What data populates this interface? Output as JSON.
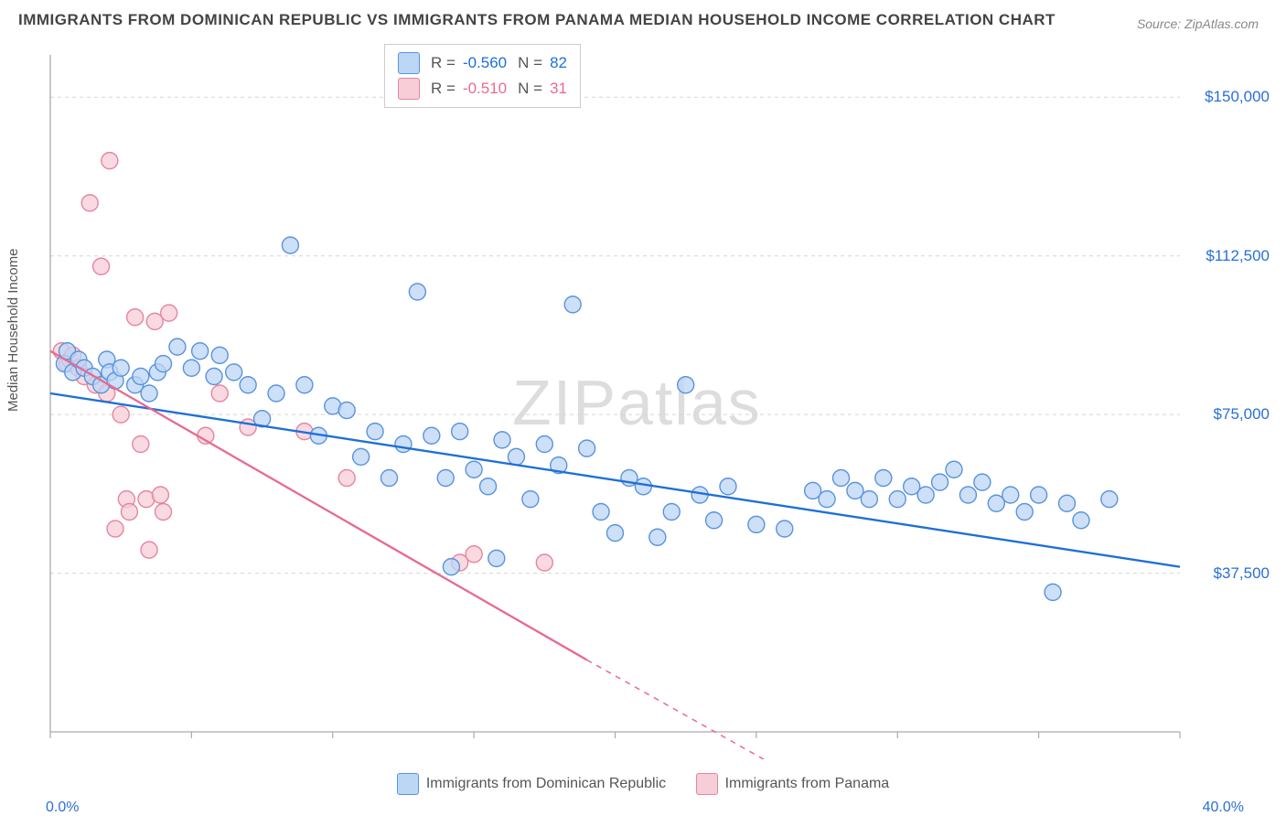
{
  "title": "IMMIGRANTS FROM DOMINICAN REPUBLIC VS IMMIGRANTS FROM PANAMA MEDIAN HOUSEHOLD INCOME CORRELATION CHART",
  "source": "Source: ZipAtlas.com",
  "ylabel": "Median Household Income",
  "watermark_bold": "ZIP",
  "watermark_light": "atlas",
  "chart": {
    "type": "scatter",
    "xlim": [
      0,
      40
    ],
    "ylim": [
      0,
      160000
    ],
    "x_left_label": "0.0%",
    "x_right_label": "40.0%",
    "x_tick_positions": [
      0,
      5,
      10,
      15,
      20,
      25,
      30,
      35,
      40
    ],
    "y_grid_positions": [
      37500,
      75000,
      112500,
      150000
    ],
    "y_tick_labels": [
      "$37,500",
      "$75,000",
      "$112,500",
      "$150,000"
    ],
    "background_color": "#ffffff",
    "grid_color": "#d5d5d5",
    "axis_color": "#aaaaaa",
    "marker_radius": 9,
    "marker_stroke_width": 1.4,
    "trend_line_width": 2.3,
    "series": [
      {
        "name": "Immigrants from Dominican Republic",
        "fill": "#bcd6f5",
        "stroke": "#5a93dd",
        "trend_color": "#1e6fd8",
        "R": "-0.560",
        "N": "82",
        "trend": {
          "x1": 0,
          "y1": 80000,
          "x2": 40,
          "y2": 39000
        },
        "points": [
          [
            0.5,
            87000
          ],
          [
            0.6,
            90000
          ],
          [
            0.8,
            85000
          ],
          [
            1.0,
            88000
          ],
          [
            1.2,
            86000
          ],
          [
            1.5,
            84000
          ],
          [
            1.8,
            82000
          ],
          [
            2.0,
            88000
          ],
          [
            2.1,
            85000
          ],
          [
            2.3,
            83000
          ],
          [
            2.5,
            86000
          ],
          [
            3.0,
            82000
          ],
          [
            3.2,
            84000
          ],
          [
            3.5,
            80000
          ],
          [
            3.8,
            85000
          ],
          [
            4.0,
            87000
          ],
          [
            4.5,
            91000
          ],
          [
            5.0,
            86000
          ],
          [
            5.3,
            90000
          ],
          [
            5.8,
            84000
          ],
          [
            6.0,
            89000
          ],
          [
            6.5,
            85000
          ],
          [
            7.0,
            82000
          ],
          [
            7.5,
            74000
          ],
          [
            8.0,
            80000
          ],
          [
            8.5,
            115000
          ],
          [
            9.0,
            82000
          ],
          [
            9.5,
            70000
          ],
          [
            10.0,
            77000
          ],
          [
            10.5,
            76000
          ],
          [
            11.0,
            65000
          ],
          [
            11.5,
            71000
          ],
          [
            12.0,
            60000
          ],
          [
            12.5,
            68000
          ],
          [
            13.0,
            104000
          ],
          [
            13.5,
            70000
          ],
          [
            14.0,
            60000
          ],
          [
            14.2,
            39000
          ],
          [
            14.5,
            71000
          ],
          [
            15.0,
            62000
          ],
          [
            15.5,
            58000
          ],
          [
            15.8,
            41000
          ],
          [
            16.0,
            69000
          ],
          [
            16.5,
            65000
          ],
          [
            17.0,
            55000
          ],
          [
            17.5,
            68000
          ],
          [
            18.0,
            63000
          ],
          [
            18.5,
            101000
          ],
          [
            19.0,
            67000
          ],
          [
            19.5,
            52000
          ],
          [
            20.0,
            47000
          ],
          [
            20.5,
            60000
          ],
          [
            21.0,
            58000
          ],
          [
            21.5,
            46000
          ],
          [
            22.0,
            52000
          ],
          [
            22.5,
            82000
          ],
          [
            23.0,
            56000
          ],
          [
            23.5,
            50000
          ],
          [
            24.0,
            58000
          ],
          [
            25.0,
            49000
          ],
          [
            26.0,
            48000
          ],
          [
            27.0,
            57000
          ],
          [
            27.5,
            55000
          ],
          [
            28.0,
            60000
          ],
          [
            28.5,
            57000
          ],
          [
            29.0,
            55000
          ],
          [
            29.5,
            60000
          ],
          [
            30.0,
            55000
          ],
          [
            30.5,
            58000
          ],
          [
            31.0,
            56000
          ],
          [
            31.5,
            59000
          ],
          [
            32.0,
            62000
          ],
          [
            32.5,
            56000
          ],
          [
            33.0,
            59000
          ],
          [
            33.5,
            54000
          ],
          [
            34.0,
            56000
          ],
          [
            34.5,
            52000
          ],
          [
            35.0,
            56000
          ],
          [
            35.5,
            33000
          ],
          [
            36.0,
            54000
          ],
          [
            36.5,
            50000
          ],
          [
            37.5,
            55000
          ]
        ]
      },
      {
        "name": "Immigrants from Panama",
        "fill": "#f7cdd7",
        "stroke": "#e685a0",
        "trend_color": "#e86a8e",
        "R": "-0.510",
        "N": "31",
        "trend": {
          "x1": 0,
          "y1": 90000,
          "x2": 19,
          "y2": 17000,
          "dash_from_x": 19,
          "dash_to": [
            27,
            -13000
          ]
        },
        "points": [
          [
            0.4,
            90000
          ],
          [
            0.6,
            87000
          ],
          [
            0.7,
            88000
          ],
          [
            0.8,
            89000
          ],
          [
            1.0,
            86000
          ],
          [
            1.2,
            84000
          ],
          [
            1.4,
            125000
          ],
          [
            1.6,
            82000
          ],
          [
            1.8,
            110000
          ],
          [
            2.0,
            80000
          ],
          [
            2.1,
            135000
          ],
          [
            2.3,
            48000
          ],
          [
            2.5,
            75000
          ],
          [
            2.7,
            55000
          ],
          [
            2.8,
            52000
          ],
          [
            3.0,
            98000
          ],
          [
            3.2,
            68000
          ],
          [
            3.4,
            55000
          ],
          [
            3.5,
            43000
          ],
          [
            3.7,
            97000
          ],
          [
            3.9,
            56000
          ],
          [
            4.0,
            52000
          ],
          [
            4.2,
            99000
          ],
          [
            5.5,
            70000
          ],
          [
            6.0,
            80000
          ],
          [
            7.0,
            72000
          ],
          [
            9.0,
            71000
          ],
          [
            10.5,
            60000
          ],
          [
            14.5,
            40000
          ],
          [
            15.0,
            42000
          ],
          [
            17.5,
            40000
          ]
        ]
      }
    ]
  },
  "legend_stats_label_R": "R =",
  "legend_stats_label_N": "N ="
}
